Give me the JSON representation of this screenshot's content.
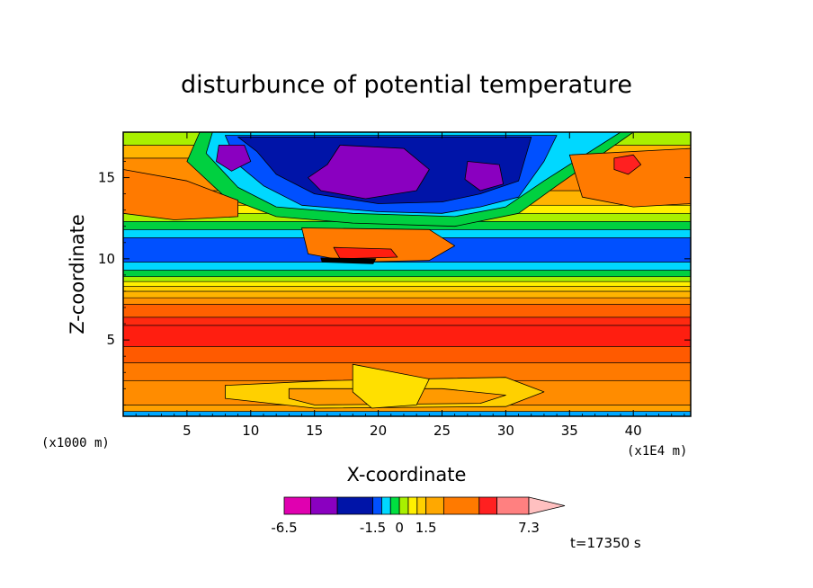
{
  "chart_data": {
    "type": "heatmap",
    "title": "disturbunce of potential temperature",
    "xlabel": "X-coordinate",
    "ylabel": "Z-coordinate",
    "x_unit_left": "(x1000 m)",
    "x_unit_right": "(x1E4 m)",
    "xlim": [
      0,
      44.5
    ],
    "ylim": [
      0.3,
      17.8
    ],
    "x_ticks": [
      5,
      10,
      15,
      20,
      25,
      30,
      35,
      40
    ],
    "x_tick_labels": [
      "5",
      "10",
      "15",
      "20",
      "25",
      "30",
      "35",
      "40"
    ],
    "y_ticks": [
      5,
      10,
      15
    ],
    "y_tick_labels": [
      "5",
      "10",
      "15"
    ],
    "time_label": "t=17350 s",
    "colorbar": {
      "levels": [
        -6.5,
        -5,
        -3.5,
        -1.5,
        -1,
        -0.5,
        0,
        0.5,
        1,
        1.5,
        2.5,
        4.5,
        5.5,
        7.3
      ],
      "colors": [
        "#e000b0",
        "#8a00c0",
        "#0014a8",
        "#0050ff",
        "#00d8ff",
        "#00e040",
        "#a8f000",
        "#fff000",
        "#ffd000",
        "#ffa800",
        "#ff7a00",
        "#ff2020",
        "#ff8080",
        "#ffc0c0"
      ],
      "labels": [
        "-6.5",
        "-1.5",
        "0",
        "1.5",
        "7.3"
      ],
      "label_values": [
        -6.5,
        -1.5,
        0,
        1.5,
        7.3
      ]
    },
    "bands": [
      {
        "z0": 0.3,
        "z1": 0.6,
        "color": "#00a8ff"
      },
      {
        "z0": 0.6,
        "z1": 1.0,
        "color": "#ffa000"
      },
      {
        "z0": 1.0,
        "z1": 2.5,
        "color": "#ff8c00"
      },
      {
        "z0": 2.5,
        "z1": 3.6,
        "color": "#ff7a00"
      },
      {
        "z0": 3.6,
        "z1": 4.6,
        "color": "#ff5a00"
      },
      {
        "z0": 4.6,
        "z1": 5.9,
        "color": "#ff1e10"
      },
      {
        "z0": 5.9,
        "z1": 6.4,
        "color": "#ff2a10"
      },
      {
        "z0": 6.4,
        "z1": 7.2,
        "color": "#ff6000"
      },
      {
        "z0": 7.2,
        "z1": 7.6,
        "color": "#ff9000"
      },
      {
        "z0": 7.6,
        "z1": 8.0,
        "color": "#ffb400"
      },
      {
        "z0": 8.0,
        "z1": 8.3,
        "color": "#ffd000"
      },
      {
        "z0": 8.3,
        "z1": 8.6,
        "color": "#fff000"
      },
      {
        "z0": 8.6,
        "z1": 8.9,
        "color": "#a8f000"
      },
      {
        "z0": 8.9,
        "z1": 9.3,
        "color": "#00d040"
      },
      {
        "z0": 9.3,
        "z1": 9.8,
        "color": "#00d8ff"
      },
      {
        "z0": 9.8,
        "z1": 11.3,
        "color": "#0050ff"
      },
      {
        "z0": 11.3,
        "z1": 11.8,
        "color": "#00d8ff"
      },
      {
        "z0": 11.8,
        "z1": 12.3,
        "color": "#00d040"
      },
      {
        "z0": 12.3,
        "z1": 12.8,
        "color": "#a8f000"
      },
      {
        "z0": 12.8,
        "z1": 13.3,
        "color": "#fff000"
      },
      {
        "z0": 13.3,
        "z1": 14.2,
        "color": "#ffb400"
      },
      {
        "z0": 14.2,
        "z1": 16.2,
        "color": "#ff8c00"
      },
      {
        "z0": 16.2,
        "z1": 17.0,
        "color": "#ffb400"
      },
      {
        "z0": 17.0,
        "z1": 17.8,
        "color": "#a8f000"
      }
    ],
    "regions": [
      {
        "name": "upper-cold-dome",
        "color": "#00d040",
        "points": [
          [
            6,
            17.8
          ],
          [
            40,
            17.8
          ],
          [
            34,
            14.5
          ],
          [
            31,
            12.8
          ],
          [
            26,
            12.0
          ],
          [
            18,
            12.2
          ],
          [
            12,
            12.6
          ],
          [
            8,
            13.8
          ],
          [
            5,
            16
          ]
        ]
      },
      {
        "name": "upper-cyan",
        "color": "#00d8ff",
        "points": [
          [
            7,
            17.8
          ],
          [
            39,
            17.8
          ],
          [
            33,
            14.8
          ],
          [
            30,
            13.2
          ],
          [
            26,
            12.6
          ],
          [
            18,
            12.8
          ],
          [
            12,
            13.2
          ],
          [
            9,
            14.4
          ],
          [
            6.5,
            16.5
          ]
        ]
      },
      {
        "name": "upper-blue",
        "color": "#0050ff",
        "points": [
          [
            8,
            17.6
          ],
          [
            34,
            17.6
          ],
          [
            33,
            16
          ],
          [
            31,
            13.8
          ],
          [
            28,
            13.2
          ],
          [
            25,
            12.8
          ],
          [
            20,
            12.9
          ],
          [
            14,
            13.3
          ],
          [
            11,
            14.5
          ],
          [
            9,
            15.8
          ]
        ]
      },
      {
        "name": "upper-navy",
        "color": "#0014a8",
        "points": [
          [
            9,
            17.5
          ],
          [
            32,
            17.5
          ],
          [
            31,
            14.8
          ],
          [
            28,
            14.0
          ],
          [
            25,
            13.5
          ],
          [
            20,
            13.4
          ],
          [
            15,
            14.0
          ],
          [
            12,
            15.2
          ],
          [
            10.5,
            16.6
          ]
        ]
      },
      {
        "name": "upper-purple",
        "color": "#8a00c0",
        "points": [
          [
            17,
            17.0
          ],
          [
            22,
            16.8
          ],
          [
            24,
            15.5
          ],
          [
            23,
            14.2
          ],
          [
            19,
            13.7
          ],
          [
            15.5,
            14.2
          ],
          [
            14.5,
            15.0
          ],
          [
            16,
            15.8
          ]
        ]
      },
      {
        "name": "purple-left",
        "color": "#8a00c0",
        "points": [
          [
            7.5,
            17.0
          ],
          [
            9.5,
            17.0
          ],
          [
            10,
            16.0
          ],
          [
            8.5,
            15.4
          ],
          [
            7.3,
            16.0
          ]
        ]
      },
      {
        "name": "purple-right",
        "color": "#8a00c0",
        "points": [
          [
            27,
            16.0
          ],
          [
            29.5,
            15.8
          ],
          [
            29.8,
            14.6
          ],
          [
            28,
            14.2
          ],
          [
            26.8,
            14.9
          ]
        ]
      },
      {
        "name": "mid-orange-core",
        "color": "#ff7a00",
        "points": [
          [
            14,
            11.9
          ],
          [
            24,
            11.8
          ],
          [
            26,
            10.8
          ],
          [
            24,
            9.9
          ],
          [
            18,
            9.8
          ],
          [
            14.5,
            10.3
          ]
        ]
      },
      {
        "name": "mid-red-core",
        "color": "#ff1e10",
        "points": [
          [
            16.5,
            10.7
          ],
          [
            21,
            10.6
          ],
          [
            21.5,
            10.1
          ],
          [
            17,
            10.0
          ]
        ]
      },
      {
        "name": "black-stripe",
        "color": "#000000",
        "points": [
          [
            15.5,
            10.05
          ],
          [
            19.8,
            10.0
          ],
          [
            19.6,
            9.7
          ],
          [
            15.6,
            9.8
          ]
        ]
      },
      {
        "name": "left-orange-lobe",
        "color": "#ff7a00",
        "points": [
          [
            0,
            15.5
          ],
          [
            5,
            14.8
          ],
          [
            9,
            13.6
          ],
          [
            9,
            12.6
          ],
          [
            4,
            12.4
          ],
          [
            0,
            12.8
          ]
        ]
      },
      {
        "name": "right-orange-lobe",
        "color": "#ff7a00",
        "points": [
          [
            35,
            16.4
          ],
          [
            44.5,
            16.8
          ],
          [
            44.5,
            13.4
          ],
          [
            40,
            13.2
          ],
          [
            36,
            13.8
          ]
        ]
      },
      {
        "name": "right-red-spot",
        "color": "#ff2020",
        "points": [
          [
            38.5,
            16.2
          ],
          [
            40,
            16.4
          ],
          [
            40.6,
            15.8
          ],
          [
            39.6,
            15.2
          ],
          [
            38.5,
            15.5
          ]
        ]
      },
      {
        "name": "lower-yellow-band",
        "color": "#ffd000",
        "points": [
          [
            8,
            2.2
          ],
          [
            16,
            2.5
          ],
          [
            30,
            2.7
          ],
          [
            33,
            1.8
          ],
          [
            30,
            0.9
          ],
          [
            15,
            0.8
          ],
          [
            8,
            1.4
          ]
        ]
      },
      {
        "name": "lower-orange-patch",
        "color": "#ff9a00",
        "points": [
          [
            13,
            2.0
          ],
          [
            25,
            2.0
          ],
          [
            30,
            1.6
          ],
          [
            28,
            1.1
          ],
          [
            15,
            1.0
          ],
          [
            13,
            1.4
          ]
        ]
      },
      {
        "name": "surface-bumps",
        "color": "#ffe000",
        "points": [
          [
            18,
            3.5
          ],
          [
            20,
            3.2
          ],
          [
            24,
            2.6
          ],
          [
            23,
            1.0
          ],
          [
            19.5,
            0.8
          ],
          [
            18,
            1.8
          ]
        ]
      }
    ]
  }
}
